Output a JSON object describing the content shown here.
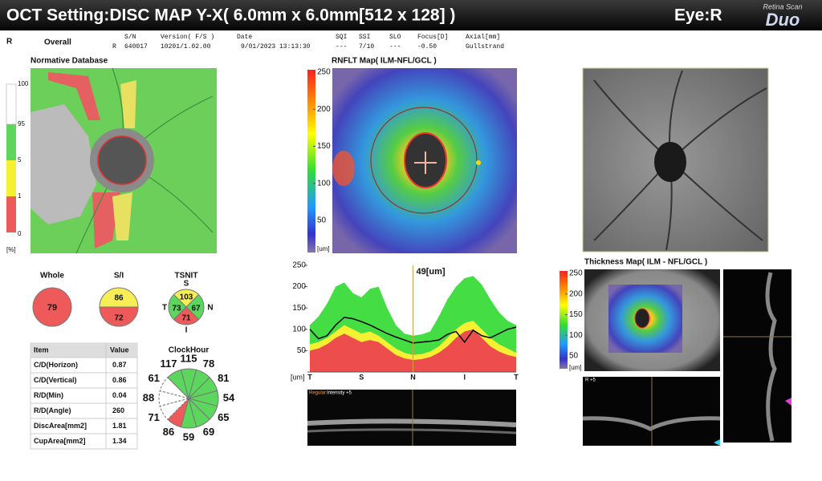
{
  "header": {
    "title": "OCT Setting:DISC MAP Y-X( 6.0mm x 6.0mm[512 x 128] )",
    "eye": "Eye:R",
    "logo_top": "Retina Scan",
    "logo": "Duo"
  },
  "info": {
    "eye": "R",
    "mode": "Overall",
    "sn_eye": "R",
    "columns": [
      {
        "label": "S/N",
        "value": "640017"
      },
      {
        "label": "Version( F/S )",
        "value": "10201/1.02.00"
      },
      {
        "label": "Date",
        "value": "9/01/2023 13:13:30"
      },
      {
        "label": "SQI",
        "value": "---"
      },
      {
        "label": "SSI",
        "value": "7/10"
      },
      {
        "label": "SLO",
        "value": "---"
      },
      {
        "label": "Focus[D]",
        "value": "-0.50"
      },
      {
        "label": "Axial[mm]",
        "value": "Gullstrand"
      }
    ]
  },
  "normative": {
    "title": "Normative Database",
    "scale": [
      "100",
      "95",
      "5",
      "1",
      "0"
    ],
    "unit": "[%]"
  },
  "rnflt": {
    "title": "RNFLT Map( ILM-NFL/GCL )",
    "ticks": [
      250,
      200,
      150,
      100,
      50
    ],
    "unit": "[um]"
  },
  "thickness": {
    "title": "Thickness Map( ILM - NFL/GCL )",
    "ticks": [
      250,
      200,
      150,
      100,
      50
    ],
    "unit": "[um]"
  },
  "whole": {
    "title": "Whole",
    "value": 79,
    "color": "#ee5a5a"
  },
  "si": {
    "title": "S/I",
    "values": [
      86,
      72
    ],
    "colors": [
      "#f7ee55",
      "#ee5a5a"
    ]
  },
  "tsnit": {
    "title": "TSNIT",
    "labels": [
      "S",
      "T",
      "N",
      "I"
    ],
    "values": [
      103,
      73,
      67,
      71
    ],
    "colors": [
      "#f7ee55",
      "#5cd65c",
      "#5cd65c",
      "#ee5a5a"
    ]
  },
  "table": {
    "header": [
      "Item",
      "Value"
    ],
    "rows": [
      [
        "C/D(Horizon)",
        "0.87"
      ],
      [
        "C/D(Vertical)",
        "0.86"
      ],
      [
        "R/D(Min)",
        "0.04"
      ],
      [
        "R/D(Angle)",
        "260"
      ],
      [
        "DiscArea[mm2]",
        "1.81"
      ],
      [
        "CupArea[mm2]",
        "1.34"
      ]
    ]
  },
  "clock_hour": {
    "title": "ClockHour",
    "values": [
      115,
      78,
      81,
      54,
      65,
      69,
      59,
      86,
      71,
      88,
      61,
      117
    ],
    "colors": [
      "#5cd65c",
      "#5cd65c",
      "#5cd65c",
      "#5cd65c",
      "#5cd65c",
      "#5cd65c",
      "#5cd65c",
      "#ee5a5a",
      "#ffffff",
      "#ffffff",
      "#ffffff",
      "#5cd65c"
    ]
  },
  "profile": {
    "ylim": [
      0,
      250
    ],
    "yticks": [
      50,
      100,
      150,
      200,
      250
    ],
    "x_labels": [
      "T",
      "S",
      "N",
      "I",
      "T"
    ],
    "unit": "[um]",
    "cursor_label": "49[um]",
    "bands": [
      {
        "color": "#44dd44",
        "values": [
          110,
          130,
          160,
          200,
          210,
          185,
          175,
          195,
          200,
          150,
          110,
          90,
          85,
          88,
          95,
          130,
          170,
          200,
          220,
          225,
          205,
          170,
          140,
          120,
          110
        ]
      },
      {
        "color": "#f5f032",
        "values": [
          65,
          70,
          80,
          95,
          110,
          100,
          90,
          95,
          85,
          70,
          55,
          45,
          40,
          42,
          48,
          60,
          80,
          100,
          115,
          120,
          100,
          80,
          65,
          55,
          45
        ]
      },
      {
        "color": "#ee4d4d",
        "values": [
          50,
          55,
          65,
          80,
          90,
          80,
          70,
          75,
          70,
          55,
          40,
          32,
          28,
          30,
          35,
          45,
          60,
          80,
          95,
          100,
          80,
          60,
          48,
          40,
          35
        ]
      }
    ],
    "line": {
      "color": "#000000",
      "values": [
        100,
        78,
        85,
        110,
        128,
        125,
        118,
        110,
        100,
        90,
        82,
        75,
        68,
        70,
        72,
        75,
        88,
        95,
        70,
        98,
        85,
        80,
        90,
        100,
        105
      ]
    }
  },
  "bscan": {
    "mode": "Regular",
    "intensity": "Intensity +5",
    "side": "R +5"
  }
}
